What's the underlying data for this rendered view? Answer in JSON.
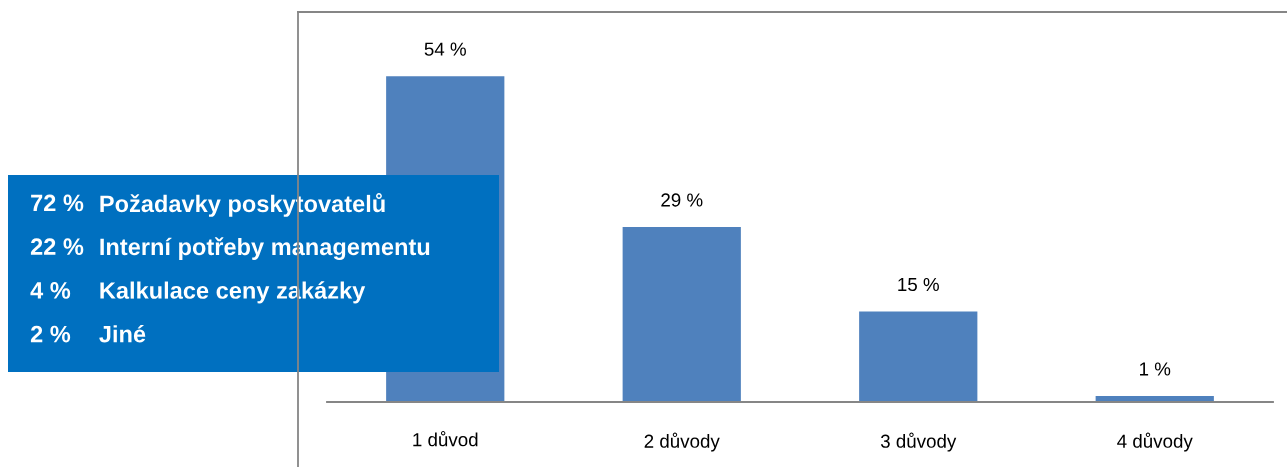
{
  "chart_data": [
    {
      "type": "bar",
      "categories": [
        "1 důvod",
        "2 důvody",
        "3 důvody",
        "4 důvody"
      ],
      "values": [
        54,
        29,
        15,
        1
      ],
      "color": "#4f81bd",
      "value_labels": [
        "54 %",
        "29 %",
        "15 %",
        "1 %"
      ],
      "tick_labels": "x"
    },
    {
      "type": "other",
      "color": "#0070c0",
      "annotations": [
        "72 %",
        "Požadavky poskytovatelů",
        "22 %",
        "Interní potřeby managementu",
        "4 %",
        "Kalkulace ceny zakázky",
        "2 %",
        "Jiné"
      ]
    }
  ]
}
